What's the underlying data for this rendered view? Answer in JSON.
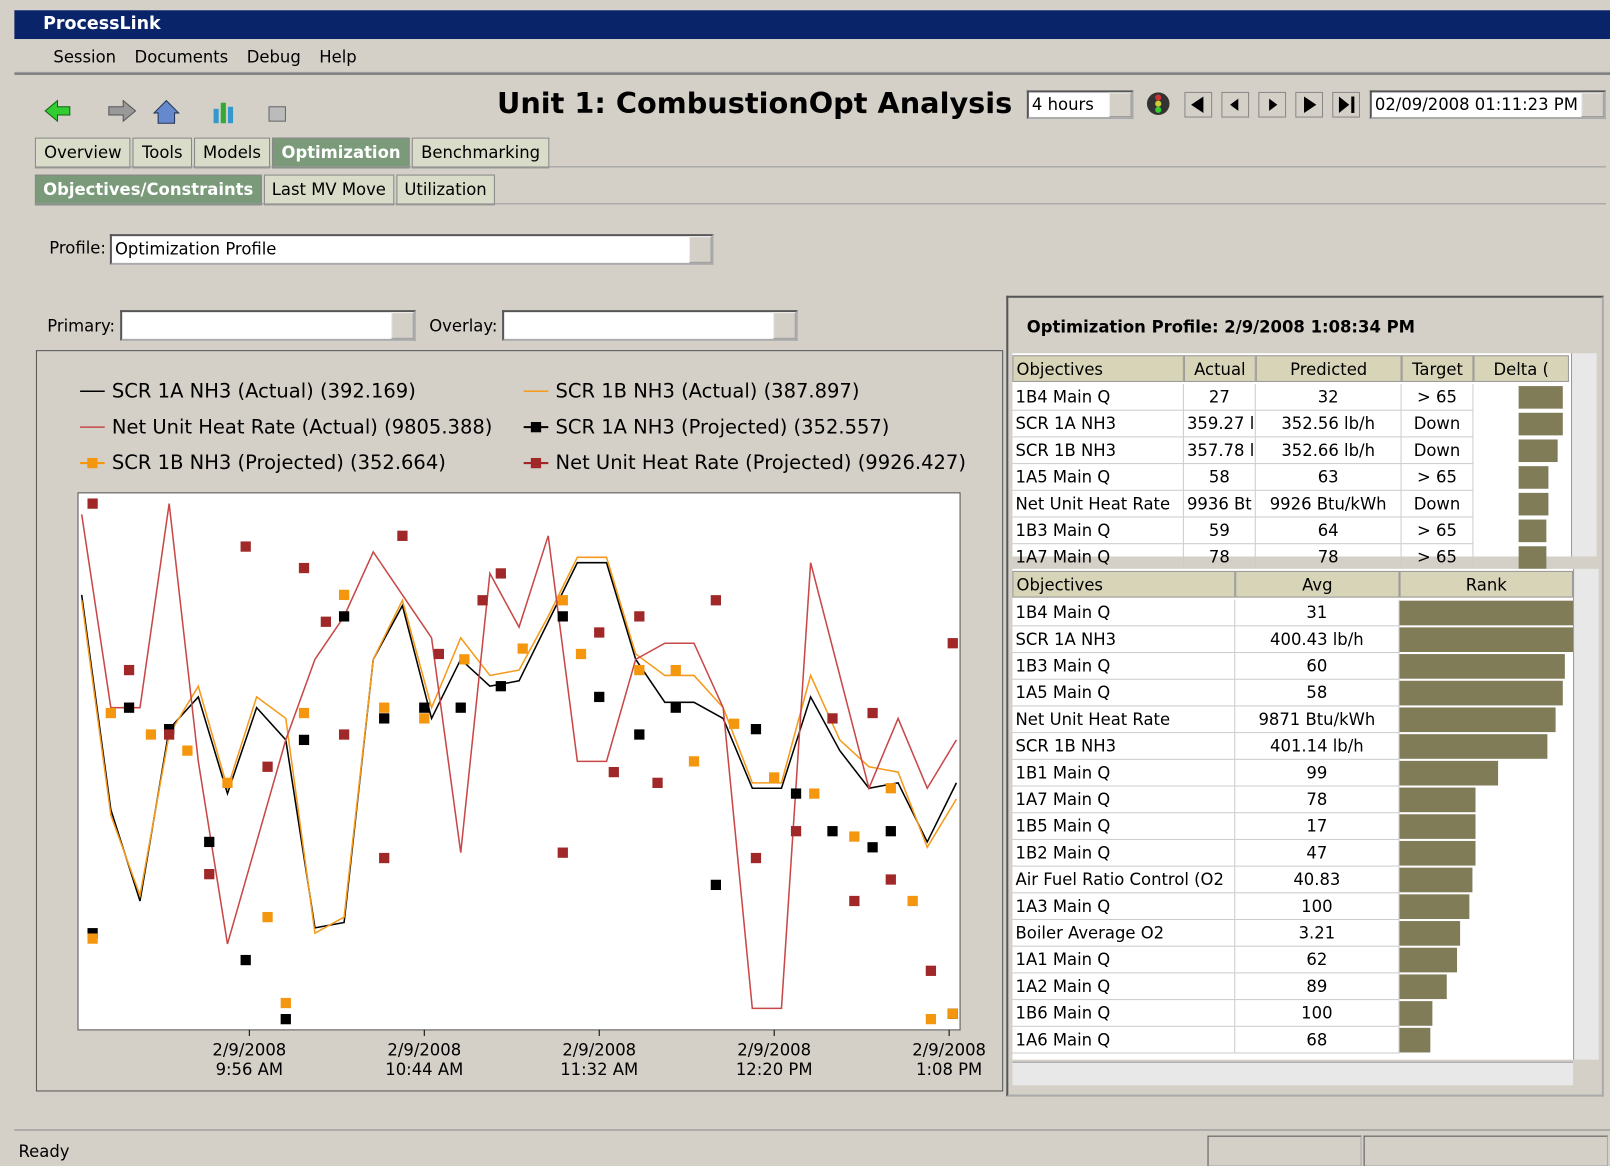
{
  "window": {
    "title": "ProcessLink",
    "menu": [
      "Session",
      "Documents",
      "Debug",
      "Help"
    ]
  },
  "header": {
    "title": "Unit 1: CombustionOpt Analysis",
    "range": "4 hours",
    "datetime": "02/09/2008 01:11:23 PM"
  },
  "tabs": [
    "Overview",
    "Tools",
    "Models",
    "Optimization",
    "Benchmarking"
  ],
  "subtabs": [
    "Objectives/Constraints",
    "Last MV Move",
    "Utilization"
  ],
  "profile": {
    "label": "Profile:",
    "value": "Optimization Profile"
  },
  "primary_label": "Primary:",
  "overlay_label": "Overlay:",
  "chart_data": {
    "type": "line",
    "ylim": [
      0,
      100
    ],
    "xlim": [
      549,
      791
    ],
    "xticks": [
      {
        "value": 596,
        "label": "2/9/2008\n9:56 AM"
      },
      {
        "value": 644,
        "label": "2/9/2008\n10:44 AM"
      },
      {
        "value": 692,
        "label": "2/9/2008\n11:32 AM"
      },
      {
        "value": 740,
        "label": "2/9/2008\n12:20 PM"
      },
      {
        "value": 788,
        "label": "2/9/2008\n1:08 PM"
      }
    ],
    "x": [
      550,
      558,
      566,
      574,
      582,
      590,
      598,
      606,
      614,
      622,
      630,
      638,
      646,
      654,
      662,
      670,
      678,
      686,
      694,
      702,
      710,
      718,
      726,
      734,
      742,
      750,
      758,
      766,
      774,
      782,
      790
    ],
    "series": [
      {
        "name": "SCR 1A NH3 (Actual) (392.169)",
        "color": "#000000",
        "values": [
          81,
          41,
          24,
          56,
          62,
          44,
          60,
          54,
          19,
          20,
          69,
          79,
          58,
          69,
          64,
          65,
          76,
          87,
          87,
          69,
          61,
          61,
          58,
          45,
          45,
          62,
          52,
          45,
          46,
          35,
          46
        ]
      },
      {
        "name": "SCR 1B NH3 (Actual) (387.897)",
        "color": "#f59a1a",
        "values": [
          80,
          40,
          25,
          55,
          64,
          45,
          62,
          58,
          18,
          21,
          69,
          80,
          60,
          73,
          66,
          67,
          77,
          88,
          88,
          70,
          66,
          66,
          60,
          46,
          46,
          66,
          54,
          49,
          48,
          34,
          43
        ]
      },
      {
        "name": "Net Unit Heat Rate (Actual) (9805.388)",
        "color": "#c84848",
        "values": [
          96,
          60,
          60,
          98,
          50,
          16,
          35,
          54,
          69,
          77,
          89,
          81,
          73,
          33,
          85,
          75,
          92,
          50,
          50,
          69,
          72,
          72,
          60,
          4,
          4,
          87,
          66,
          45,
          58,
          45,
          54
        ]
      },
      {
        "name": "SCR 1A NH3 (Projected) (352.557)",
        "color": "#000000",
        "marker": "square",
        "x": [
          553,
          563,
          574,
          585,
          595,
          606,
          611,
          622,
          633,
          644,
          654,
          665,
          682,
          692,
          703,
          713,
          724,
          735,
          746,
          756,
          767,
          772,
          789
        ],
        "values": [
          18,
          60,
          56,
          35,
          13,
          2,
          54,
          77,
          58,
          60,
          60,
          64,
          77,
          62,
          55,
          60,
          27,
          56,
          44,
          37,
          34,
          37,
          3
        ]
      },
      {
        "name": "SCR 1B NH3 (Projected) (352.664)",
        "color": "#f5960f",
        "marker": "square",
        "x": [
          553,
          558,
          569,
          579,
          590,
          601,
          606,
          611,
          622,
          633,
          644,
          655,
          671,
          682,
          687,
          703,
          713,
          718,
          729,
          740,
          751,
          762,
          772,
          778,
          783,
          789
        ],
        "values": [
          17,
          59,
          55,
          52,
          46,
          21,
          5,
          59,
          81,
          60,
          58,
          69,
          71,
          80,
          70,
          67,
          67,
          50,
          57,
          47,
          44,
          36,
          45,
          24,
          2,
          3
        ]
      },
      {
        "name": "Net Unit Heat Rate (Projected) (9926.427)",
        "color": "#a02828",
        "marker": "square",
        "x": [
          553,
          563,
          574,
          585,
          595,
          601,
          611,
          617,
          622,
          633,
          638,
          648,
          660,
          665,
          682,
          692,
          696,
          703,
          708,
          724,
          735,
          746,
          756,
          762,
          767,
          772,
          783,
          789
        ],
        "values": [
          98,
          67,
          55,
          29,
          90,
          49,
          86,
          76,
          55,
          32,
          92,
          70,
          80,
          85,
          33,
          74,
          48,
          77,
          46,
          80,
          32,
          37,
          58,
          24,
          59,
          28,
          11,
          72
        ]
      }
    ]
  },
  "profile_panel": {
    "title": "Optimization Profile: 2/9/2008 1:08:34 PM",
    "columns": [
      "Objectives",
      "Actual",
      "Predicted",
      "Target",
      "Delta ("
    ],
    "rows": [
      [
        "1B4 Main Q",
        "27",
        "32",
        "> 65"
      ],
      [
        "SCR 1A NH3",
        "359.27 l",
        "352.56 lb/h",
        "Down"
      ],
      [
        "SCR 1B NH3",
        "357.78 l",
        "352.66 lb/h",
        "Down"
      ],
      [
        "1A5 Main Q",
        "58",
        "63",
        "> 65"
      ],
      [
        "Net Unit Heat Rate",
        "9936 Bt",
        "9926 Btu/kWh",
        "Down"
      ],
      [
        "1B3 Main Q",
        "59",
        "64",
        "> 65"
      ],
      [
        "1A7 Main Q",
        "78",
        "78",
        "> 65"
      ]
    ],
    "delta": [
      95,
      95,
      85,
      65,
      65,
      60,
      60
    ]
  },
  "rank_table": {
    "columns": [
      "Objectives",
      "Avg",
      "Rank"
    ],
    "rows": [
      [
        "1B4 Main Q",
        "31"
      ],
      [
        "SCR 1A NH3",
        "400.43 lb/h"
      ],
      [
        "1B3 Main Q",
        "60"
      ],
      [
        "1A5 Main Q",
        "58"
      ],
      [
        "Net Unit Heat Rate",
        "9871 Btu/kWh"
      ],
      [
        "SCR 1B NH3",
        "401.14 lb/h"
      ],
      [
        "1B1 Main Q",
        "99"
      ],
      [
        "1A7 Main Q",
        "78"
      ],
      [
        "1B5 Main Q",
        "17"
      ],
      [
        "1B2 Main Q",
        "47"
      ],
      [
        "Air Fuel Ratio Control (O2",
        "40.83"
      ],
      [
        "1A3 Main Q",
        "100"
      ],
      [
        "Boiler Average O2",
        "3.21"
      ],
      [
        "1A1 Main Q",
        "62"
      ],
      [
        "1A2 Main Q",
        "89"
      ],
      [
        "1B6 Main Q",
        "100"
      ],
      [
        "1A6 Main Q",
        "68"
      ]
    ],
    "rank": [
      100,
      100,
      95,
      94,
      90,
      85,
      57,
      44,
      44,
      44,
      42,
      40,
      35,
      33,
      27,
      19,
      18
    ]
  },
  "status": "Ready"
}
